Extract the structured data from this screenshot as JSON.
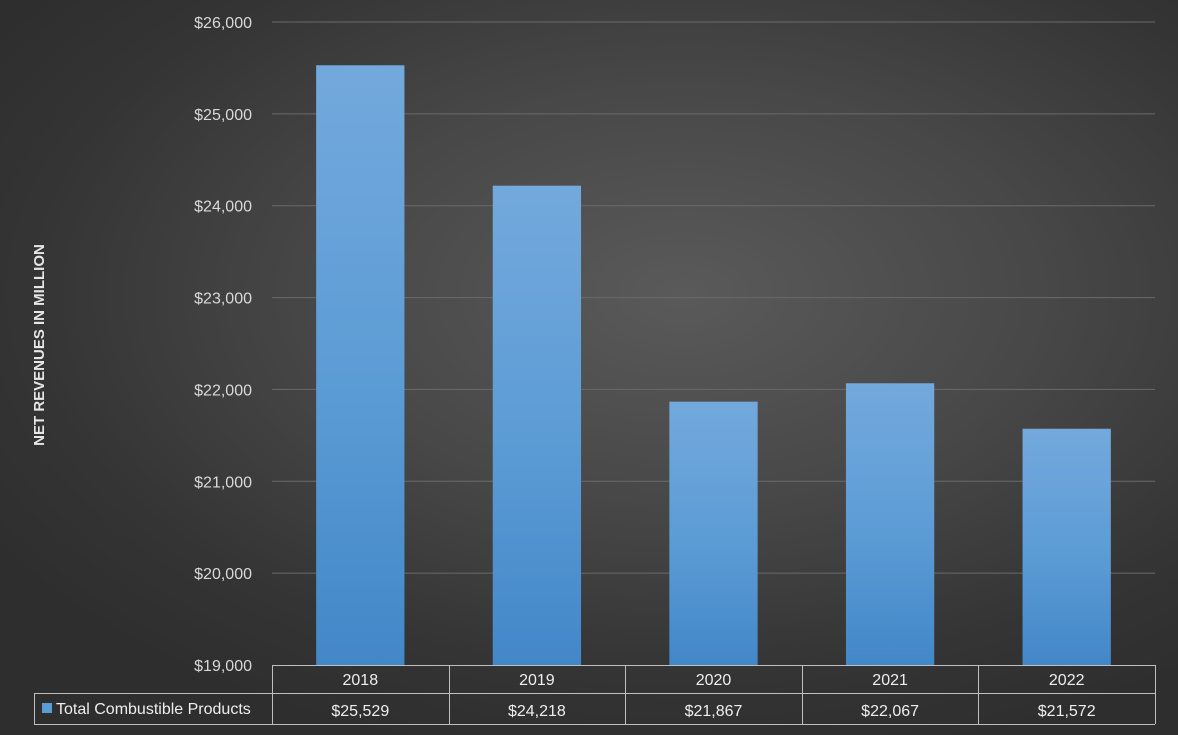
{
  "chart_data": {
    "type": "bar",
    "title": "",
    "xlabel": "",
    "ylabel": "NET REVENUES IN MILLION",
    "categories": [
      "2018",
      "2019",
      "2020",
      "2021",
      "2022"
    ],
    "series": [
      {
        "name": "Total Combustible Products",
        "values": [
          25529,
          24218,
          21867,
          22067,
          21572
        ],
        "value_labels": [
          "$25,529",
          "$24,218",
          "$21,867",
          "$22,067",
          "$21,572"
        ],
        "color": "#5b9bd5"
      }
    ],
    "ylim": [
      19000,
      26000
    ],
    "yticks": [
      19000,
      20000,
      21000,
      22000,
      23000,
      24000,
      25000,
      26000
    ],
    "ytick_labels": [
      "$19,000",
      "$20,000",
      "$21,000",
      "$22,000",
      "$23,000",
      "$24,000",
      "$25,000",
      "$26,000"
    ],
    "grid": true,
    "legend": "data-table-bottom",
    "colors": {
      "gridline": "#6a6a6a",
      "table_border": "#bfbfbf",
      "text": "#d9d9d9"
    }
  }
}
